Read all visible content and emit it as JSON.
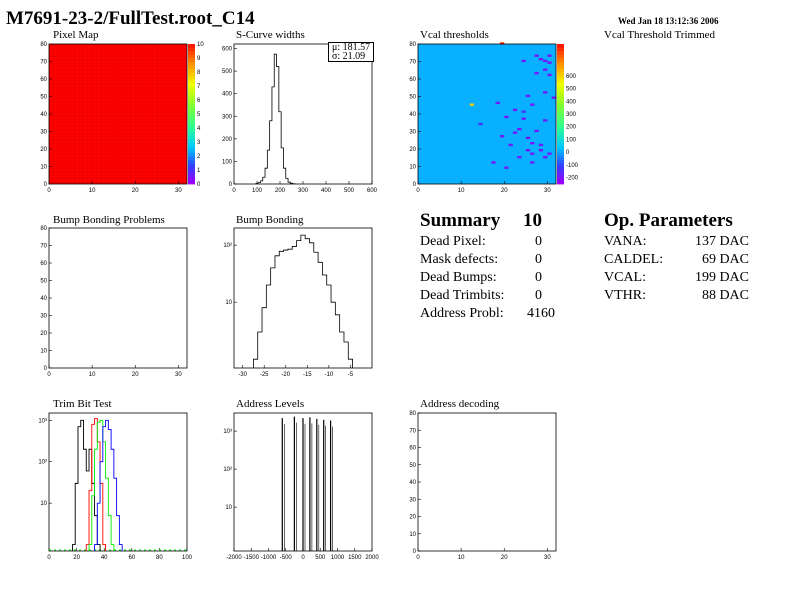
{
  "header": {
    "title": "M7691-23-2/FullTest.root_C14",
    "date": "Wed Jan 18 13:12:36 2006"
  },
  "panels": {
    "pixel_map": "Pixel Map",
    "scurve": "S-Curve widths",
    "vcal": "Vcal thresholds",
    "vcal_trimmed": "Vcal Threshold Trimmed",
    "bump_problems": "Bump Bonding Problems",
    "bump": "Bump Bonding",
    "trim": "Trim Bit Test",
    "address_levels": "Address Levels",
    "address_decoding": "Address decoding"
  },
  "scurve_stats": {
    "mu": "μ: 181.57",
    "sigma": "σ: 21.09"
  },
  "summary": {
    "title": "Summary",
    "total": "10",
    "rows": [
      {
        "label": "Dead Pixel:",
        "value": "0"
      },
      {
        "label": "Mask defects:",
        "value": "0"
      },
      {
        "label": "Dead Bumps:",
        "value": "0"
      },
      {
        "label": "Dead Trimbits:",
        "value": "0"
      },
      {
        "label": "Address Probl:",
        "value": "4160"
      }
    ]
  },
  "op_parameters": {
    "title": "Op. Parameters",
    "rows": [
      {
        "label": "VANA:",
        "value": "137 DAC"
      },
      {
        "label": "CALDEL:",
        "value": "69 DAC"
      },
      {
        "label": "VCAL:",
        "value": "199 DAC"
      },
      {
        "label": "VTHR:",
        "value": "88 DAC"
      }
    ]
  },
  "chart_data": [
    {
      "id": "pixel_map",
      "type": "heatmap",
      "title": "Pixel Map",
      "xlim": [
        0,
        32
      ],
      "ylim": [
        0,
        80
      ],
      "xticks": [
        "0",
        "10",
        "20",
        "30"
      ],
      "yticks": [
        "0",
        "10",
        "20",
        "30",
        "40",
        "50",
        "60",
        "70",
        "80"
      ],
      "value_all": 10,
      "colorbar": {
        "range": [
          0,
          10
        ],
        "ticks": [
          "0",
          "1",
          "2",
          "3",
          "4",
          "5",
          "6",
          "7",
          "8",
          "9",
          "10"
        ]
      }
    },
    {
      "id": "scurve",
      "type": "bar",
      "title": "S-Curve widths",
      "xlim": [
        0,
        600
      ],
      "ylim": [
        0,
        620
      ],
      "xticks": [
        "0",
        "100",
        "200",
        "300",
        "400",
        "500",
        "600"
      ],
      "yticks": [
        "0",
        "100",
        "200",
        "300",
        "400",
        "500",
        "600"
      ],
      "x": [
        100,
        110,
        120,
        130,
        140,
        150,
        160,
        170,
        180,
        190,
        200,
        210,
        220,
        230,
        240,
        250,
        260
      ],
      "values": [
        2,
        6,
        14,
        30,
        70,
        150,
        280,
        430,
        575,
        520,
        320,
        160,
        70,
        25,
        8,
        3,
        1
      ]
    },
    {
      "id": "vcal",
      "type": "heatmap",
      "title": "Vcal thresholds",
      "xlim": [
        0,
        32
      ],
      "ylim": [
        0,
        80
      ],
      "xticks": [
        "0",
        "10",
        "20",
        "30"
      ],
      "yticks": [
        "0",
        "10",
        "20",
        "30",
        "40",
        "50",
        "60",
        "70",
        "80"
      ],
      "base_value": 0,
      "colorbar": {
        "range": [
          -250,
          850
        ],
        "ticks": [
          "-200",
          "-100",
          "0",
          "100",
          "200",
          "300",
          "400",
          "500",
          "600"
        ]
      },
      "outliers_x": [
        12,
        14,
        18,
        20,
        22,
        24,
        25,
        26,
        27,
        28,
        29,
        30,
        21,
        23,
        25,
        27,
        29,
        26,
        28,
        30,
        19,
        22,
        24,
        26,
        28,
        17,
        20,
        23,
        26,
        29,
        31,
        24,
        27,
        30,
        25,
        29,
        19,
        29,
        30
      ],
      "outliers_y": [
        45,
        34,
        46,
        38,
        42,
        41,
        50,
        45,
        63,
        71,
        70,
        69,
        22,
        31,
        26,
        30,
        36,
        17,
        22,
        17,
        27,
        29,
        37,
        23,
        19,
        12,
        9,
        15,
        12,
        15,
        49,
        70,
        73,
        73,
        19,
        52,
        80,
        65,
        62
      ],
      "outliers_v": [
        600,
        -150,
        -200,
        -200,
        -200,
        -150,
        -200,
        -200,
        -200,
        -200,
        -200,
        -200,
        -200,
        -200,
        -200,
        -200,
        -200,
        -200,
        -200,
        -200,
        -200,
        -200,
        -200,
        -200,
        -200,
        -200,
        -200,
        -200,
        -200,
        -200,
        -200,
        -200,
        -200,
        -200,
        -200,
        -200,
        800,
        -200,
        -200
      ]
    },
    {
      "id": "bump_problems",
      "type": "heatmap",
      "title": "Bump Bonding Problems",
      "xlim": [
        0,
        32
      ],
      "ylim": [
        0,
        80
      ],
      "xticks": [
        "0",
        "10",
        "20",
        "30"
      ],
      "yticks": [
        "0",
        "10",
        "20",
        "30",
        "40",
        "50",
        "60",
        "70",
        "80"
      ]
    },
    {
      "id": "bump",
      "type": "bar",
      "title": "Bump Bonding",
      "yscale": "log",
      "xlim": [
        -32,
        0
      ],
      "ylim": [
        0.7,
        200
      ],
      "xticks": [
        "-30",
        "-25",
        "-20",
        "-15",
        "-10",
        "-5"
      ],
      "yticks": [
        "10",
        "10²"
      ],
      "x": [
        -27,
        -26,
        -25,
        -24,
        -23,
        -22,
        -21,
        -20,
        -19,
        -18,
        -17,
        -16,
        -15,
        -14,
        -13,
        -12,
        -11,
        -10,
        -9,
        -8,
        -7,
        -6,
        -5
      ],
      "values": [
        1,
        3,
        8,
        20,
        40,
        65,
        78,
        82,
        85,
        95,
        120,
        150,
        130,
        110,
        75,
        50,
        30,
        20,
        10,
        6,
        3,
        2,
        1
      ]
    },
    {
      "id": "trim",
      "type": "line",
      "title": "Trim Bit Test",
      "yscale": "log",
      "xlim": [
        0,
        100
      ],
      "ylim": [
        0.7,
        1500
      ],
      "xticks": [
        "0",
        "20",
        "40",
        "60",
        "80",
        "100"
      ],
      "yticks": [
        "10",
        "10²",
        "10³"
      ],
      "series": [
        {
          "color": "#000000",
          "x": [
            18,
            20,
            22,
            24,
            26,
            28,
            30,
            32,
            34,
            36
          ],
          "values": [
            1,
            30,
            700,
            1000,
            200,
            60,
            200,
            30,
            5,
            1
          ]
        },
        {
          "color": "#ff0000",
          "x": [
            28,
            30,
            32,
            34,
            36,
            38,
            40
          ],
          "values": [
            1,
            20,
            800,
            1100,
            300,
            30,
            1
          ]
        },
        {
          "color": "#00ee00",
          "x": [
            30,
            32,
            34,
            36,
            38,
            40,
            42,
            44,
            46
          ],
          "values": [
            1,
            15,
            200,
            900,
            1000,
            300,
            40,
            5,
            1
          ]
        },
        {
          "color": "#0000ff",
          "x": [
            34,
            36,
            38,
            40,
            42,
            44,
            46,
            48,
            50,
            52
          ],
          "values": [
            1,
            10,
            100,
            700,
            1000,
            600,
            200,
            40,
            5,
            1
          ]
        }
      ]
    },
    {
      "id": "address_levels",
      "type": "bar",
      "title": "Address Levels",
      "yscale": "log",
      "xlim": [
        -2000,
        2000
      ],
      "ylim": [
        0.7,
        3000
      ],
      "xticks": [
        "-2000",
        "-1500",
        "-1000",
        "-500",
        "0",
        "500",
        "1000",
        "1500",
        "2000"
      ],
      "yticks": [
        "10",
        "10²",
        "10³"
      ],
      "peaks_x": [
        -600,
        -250,
        0,
        200,
        400,
        600,
        800
      ],
      "peaks_values": [
        2200,
        2400,
        2200,
        2300,
        2100,
        2000,
        1900
      ]
    },
    {
      "id": "address_decoding",
      "type": "heatmap",
      "title": "Address decoding",
      "xlim": [
        0,
        32
      ],
      "ylim": [
        0,
        80
      ],
      "xticks": [
        "0",
        "10",
        "20",
        "30"
      ],
      "yticks": [
        "0",
        "10",
        "20",
        "30",
        "40",
        "50",
        "60",
        "70",
        "80"
      ]
    }
  ]
}
